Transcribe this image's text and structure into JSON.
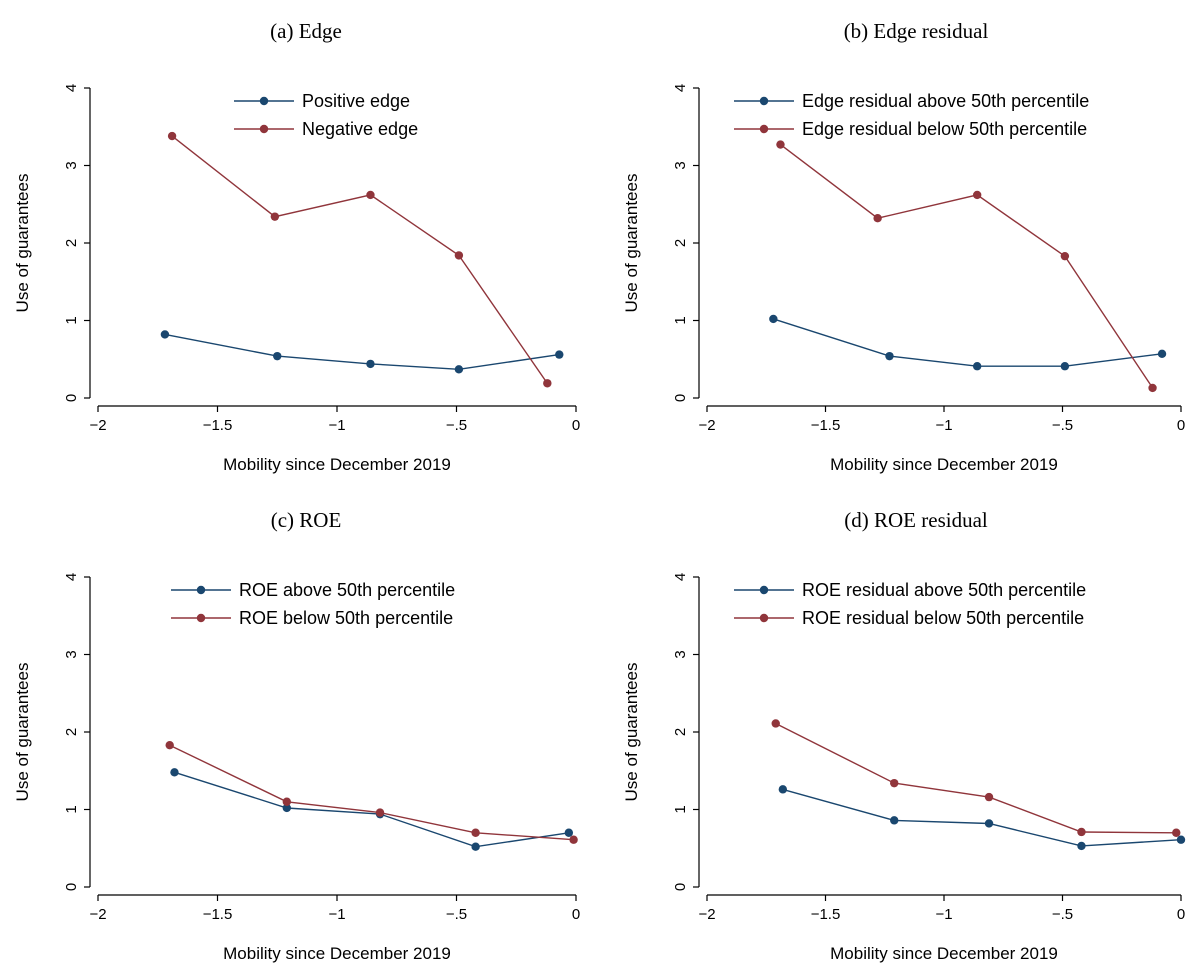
{
  "figure": {
    "colors": {
      "navy": "#1a476f",
      "maroon": "#90353b",
      "axis": "#000000"
    },
    "chart_data": [
      {
        "type": "line",
        "title": "(a) Edge",
        "xlabel": "Mobility since December 2019",
        "ylabel": "Use of guarantees",
        "xlim": [
          -2,
          0
        ],
        "ylim": [
          0,
          4
        ],
        "xticks": [
          -2,
          -1.5,
          -1,
          -0.5,
          0
        ],
        "xtick_labels": [
          "−2",
          "−1.5",
          "−1",
          "−.5",
          "0"
        ],
        "yticks": [
          0,
          1,
          2,
          3,
          4
        ],
        "ytick_labels": [
          "0",
          "1",
          "2",
          "3",
          "4"
        ],
        "grid": false,
        "legend_position": "top-center",
        "series": [
          {
            "name": "Positive edge",
            "color": "#1a476f",
            "x": [
              -1.72,
              -1.25,
              -0.86,
              -0.49,
              -0.07
            ],
            "y": [
              0.82,
              0.54,
              0.44,
              0.37,
              0.56
            ]
          },
          {
            "name": "Negative edge",
            "color": "#90353b",
            "x": [
              -1.69,
              -1.26,
              -0.86,
              -0.49,
              -0.12
            ],
            "y": [
              3.38,
              2.34,
              2.62,
              1.84,
              0.19
            ]
          }
        ]
      },
      {
        "type": "line",
        "title": "(b) Edge residual",
        "xlabel": "Mobility since December 2019",
        "ylabel": "Use of guarantees",
        "xlim": [
          -2,
          0
        ],
        "ylim": [
          0,
          4
        ],
        "xticks": [
          -2,
          -1.5,
          -1,
          -0.5,
          0
        ],
        "xtick_labels": [
          "−2",
          "−1.5",
          "−1",
          "−.5",
          "0"
        ],
        "yticks": [
          0,
          1,
          2,
          3,
          4
        ],
        "ytick_labels": [
          "0",
          "1",
          "2",
          "3",
          "4"
        ],
        "grid": false,
        "legend_position": "top-center",
        "series": [
          {
            "name": "Edge residual above 50th percentile",
            "color": "#1a476f",
            "x": [
              -1.72,
              -1.23,
              -0.86,
              -0.49,
              -0.08
            ],
            "y": [
              1.02,
              0.54,
              0.41,
              0.41,
              0.57
            ]
          },
          {
            "name": "Edge residual below 50th percentile",
            "color": "#90353b",
            "x": [
              -1.69,
              -1.28,
              -0.86,
              -0.49,
              -0.12
            ],
            "y": [
              3.27,
              2.32,
              2.62,
              1.83,
              0.13
            ]
          }
        ]
      },
      {
        "type": "line",
        "title": "(c) ROE",
        "xlabel": "Mobility since December 2019",
        "ylabel": "Use of guarantees",
        "xlim": [
          -2,
          0
        ],
        "ylim": [
          0,
          4
        ],
        "xticks": [
          -2,
          -1.5,
          -1,
          -0.5,
          0
        ],
        "xtick_labels": [
          "−2",
          "−1.5",
          "−1",
          "−.5",
          "0"
        ],
        "yticks": [
          0,
          1,
          2,
          3,
          4
        ],
        "ytick_labels": [
          "0",
          "1",
          "2",
          "3",
          "4"
        ],
        "grid": false,
        "legend_position": "top-center",
        "series": [
          {
            "name": "ROE above 50th percentile",
            "color": "#1a476f",
            "x": [
              -1.68,
              -1.21,
              -0.82,
              -0.42,
              -0.03
            ],
            "y": [
              1.48,
              1.02,
              0.94,
              0.52,
              0.7
            ]
          },
          {
            "name": "ROE below 50th percentile",
            "color": "#90353b",
            "x": [
              -1.7,
              -1.21,
              -0.82,
              -0.42,
              -0.01
            ],
            "y": [
              1.83,
              1.1,
              0.96,
              0.7,
              0.61
            ]
          }
        ]
      },
      {
        "type": "line",
        "title": "(d) ROE residual",
        "xlabel": "Mobility since December 2019",
        "ylabel": "Use of guarantees",
        "xlim": [
          -2,
          0
        ],
        "ylim": [
          0,
          4
        ],
        "xticks": [
          -2,
          -1.5,
          -1,
          -0.5,
          0
        ],
        "xtick_labels": [
          "−2",
          "−1.5",
          "−1",
          "−.5",
          "0"
        ],
        "yticks": [
          0,
          1,
          2,
          3,
          4
        ],
        "ytick_labels": [
          "0",
          "1",
          "2",
          "3",
          "4"
        ],
        "grid": false,
        "legend_position": "top-center",
        "series": [
          {
            "name": "ROE residual above 50th percentile",
            "color": "#1a476f",
            "x": [
              -1.68,
              -1.21,
              -0.81,
              -0.42,
              0.0
            ],
            "y": [
              1.26,
              0.86,
              0.82,
              0.53,
              0.61
            ]
          },
          {
            "name": "ROE residual below 50th percentile",
            "color": "#90353b",
            "x": [
              -1.71,
              -1.21,
              -0.81,
              -0.42,
              -0.02
            ],
            "y": [
              2.11,
              1.34,
              1.16,
              0.71,
              0.7
            ]
          }
        ]
      }
    ]
  }
}
